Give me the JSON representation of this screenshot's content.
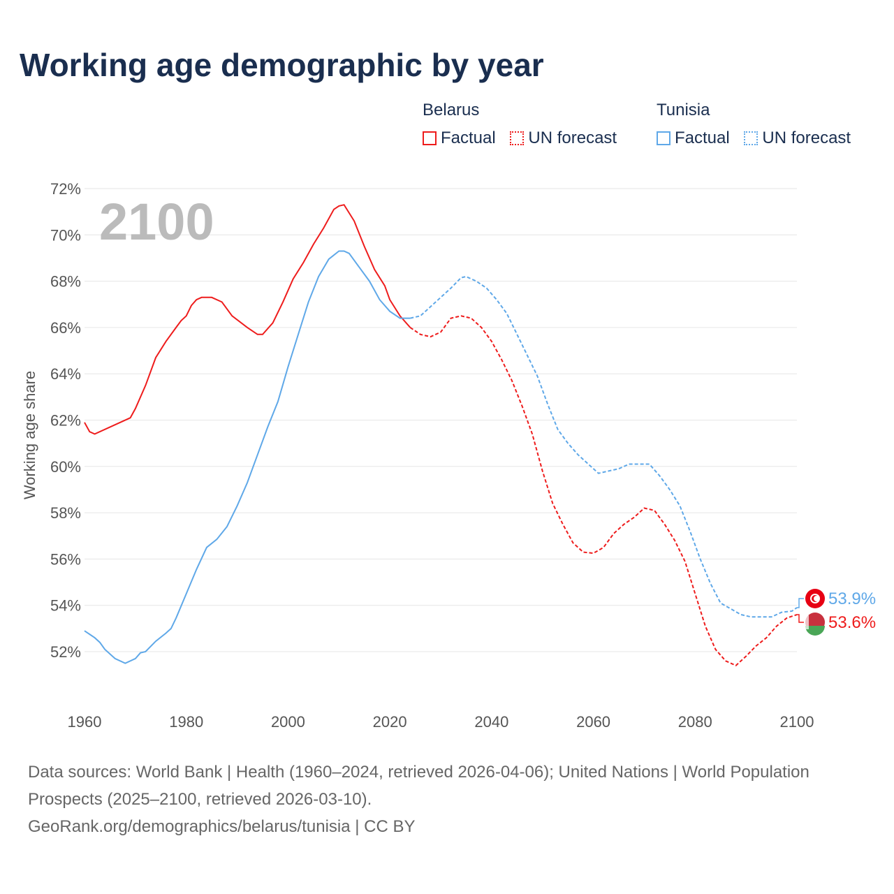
{
  "title": "Working age demographic by year",
  "legend": [
    {
      "country": "Belarus",
      "factual": "Factual",
      "forecast": "UN forecast",
      "color": "#ee1c1c"
    },
    {
      "country": "Tunisia",
      "factual": "Factual",
      "forecast": "UN forecast",
      "color": "#5fa8e8"
    }
  ],
  "source": {
    "line1": "Data sources: World Bank | Health (1960–2024, retrieved 2026-04-06); United Nations | World Population Prospects (2025–2100, retrieved 2026-03-10).",
    "line2": "GeoRank.org/demographics/belarus/tunisia | CC BY"
  },
  "chart_data": {
    "type": "line",
    "title": "Working age demographic by year",
    "xlabel": "",
    "ylabel": "Working age share",
    "year_label": "2100",
    "xlim": [
      1960,
      2100
    ],
    "ylim": [
      50,
      72
    ],
    "x_ticks": [
      1960,
      1980,
      2000,
      2020,
      2040,
      2060,
      2080,
      2100
    ],
    "y_ticks": [
      52,
      54,
      56,
      58,
      60,
      62,
      64,
      66,
      68,
      70,
      72
    ],
    "y_tick_suffix": "%",
    "factual_end": 2024,
    "series": [
      {
        "name": "Belarus",
        "color": "#ee1c1c",
        "end_label": "53.6%",
        "x": [
          1960,
          1961,
          1962,
          1969,
          1970,
          1972,
          1974,
          1976,
          1978,
          1979,
          1980,
          1981,
          1982,
          1983,
          1985,
          1987,
          1989,
          1992,
          1994,
          1995,
          1997,
          1999,
          2001,
          2003,
          2005,
          2007,
          2009,
          2010,
          2011,
          2013,
          2015,
          2017,
          2019,
          2020,
          2022,
          2024,
          2026,
          2028,
          2030,
          2032,
          2034,
          2036,
          2038,
          2040,
          2042,
          2044,
          2046,
          2048,
          2050,
          2052,
          2054,
          2056,
          2058,
          2060,
          2062,
          2064,
          2066,
          2068,
          2070,
          2072,
          2074,
          2076,
          2078,
          2080,
          2082,
          2084,
          2086,
          2088,
          2090,
          2092,
          2094,
          2096,
          2098,
          2100
        ],
        "y": [
          61.9,
          61.5,
          61.4,
          62.1,
          62.5,
          63.5,
          64.7,
          65.4,
          66.0,
          66.3,
          66.5,
          66.95,
          67.2,
          67.3,
          67.3,
          67.1,
          66.5,
          66.0,
          65.7,
          65.7,
          66.2,
          67.1,
          68.1,
          68.8,
          69.6,
          70.3,
          71.1,
          71.25,
          71.3,
          70.6,
          69.5,
          68.5,
          67.8,
          67.2,
          66.5,
          66.0,
          65.7,
          65.6,
          65.8,
          66.4,
          66.5,
          66.4,
          66.0,
          65.4,
          64.6,
          63.7,
          62.6,
          61.4,
          59.8,
          58.4,
          57.5,
          56.7,
          56.3,
          56.25,
          56.5,
          57.1,
          57.5,
          57.8,
          58.2,
          58.1,
          57.5,
          56.8,
          55.9,
          54.5,
          53.1,
          52.1,
          51.6,
          51.4,
          51.8,
          52.25,
          52.6,
          53.1,
          53.45,
          53.6
        ]
      },
      {
        "name": "Tunisia",
        "color": "#5fa8e8",
        "end_label": "53.9%",
        "x": [
          1960,
          1962,
          1963,
          1964,
          1966,
          1968,
          1970,
          1971,
          1972,
          1974,
          1976,
          1977,
          1978,
          1980,
          1982,
          1984,
          1986,
          1988,
          1990,
          1992,
          1994,
          1996,
          1998,
          2000,
          2002,
          2004,
          2006,
          2008,
          2010,
          2011,
          2012,
          2014,
          2016,
          2018,
          2020,
          2022,
          2024,
          2026,
          2028,
          2030,
          2032,
          2034,
          2035,
          2037,
          2039,
          2041,
          2043,
          2045,
          2047,
          2049,
          2051,
          2053,
          2055,
          2057,
          2059,
          2061,
          2063,
          2065,
          2067,
          2069,
          2071,
          2073,
          2075,
          2077,
          2079,
          2081,
          2083,
          2085,
          2087,
          2089,
          2091,
          2093,
          2095,
          2097,
          2099,
          2100
        ],
        "y": [
          52.9,
          52.6,
          52.4,
          52.1,
          51.7,
          51.5,
          51.7,
          51.95,
          52.0,
          52.45,
          52.8,
          53.0,
          53.45,
          54.5,
          55.55,
          56.5,
          56.85,
          57.4,
          58.3,
          59.3,
          60.5,
          61.7,
          62.8,
          64.3,
          65.7,
          67.1,
          68.2,
          68.95,
          69.3,
          69.3,
          69.2,
          68.6,
          68.0,
          67.2,
          66.7,
          66.4,
          66.4,
          66.5,
          66.9,
          67.3,
          67.7,
          68.15,
          68.2,
          68.0,
          67.7,
          67.2,
          66.6,
          65.7,
          64.8,
          63.9,
          62.7,
          61.6,
          61.0,
          60.5,
          60.1,
          59.7,
          59.8,
          59.9,
          60.1,
          60.1,
          60.1,
          59.6,
          59.0,
          58.3,
          57.2,
          56.0,
          54.95,
          54.1,
          53.85,
          53.6,
          53.5,
          53.5,
          53.5,
          53.7,
          53.75,
          53.9
        ]
      }
    ]
  }
}
